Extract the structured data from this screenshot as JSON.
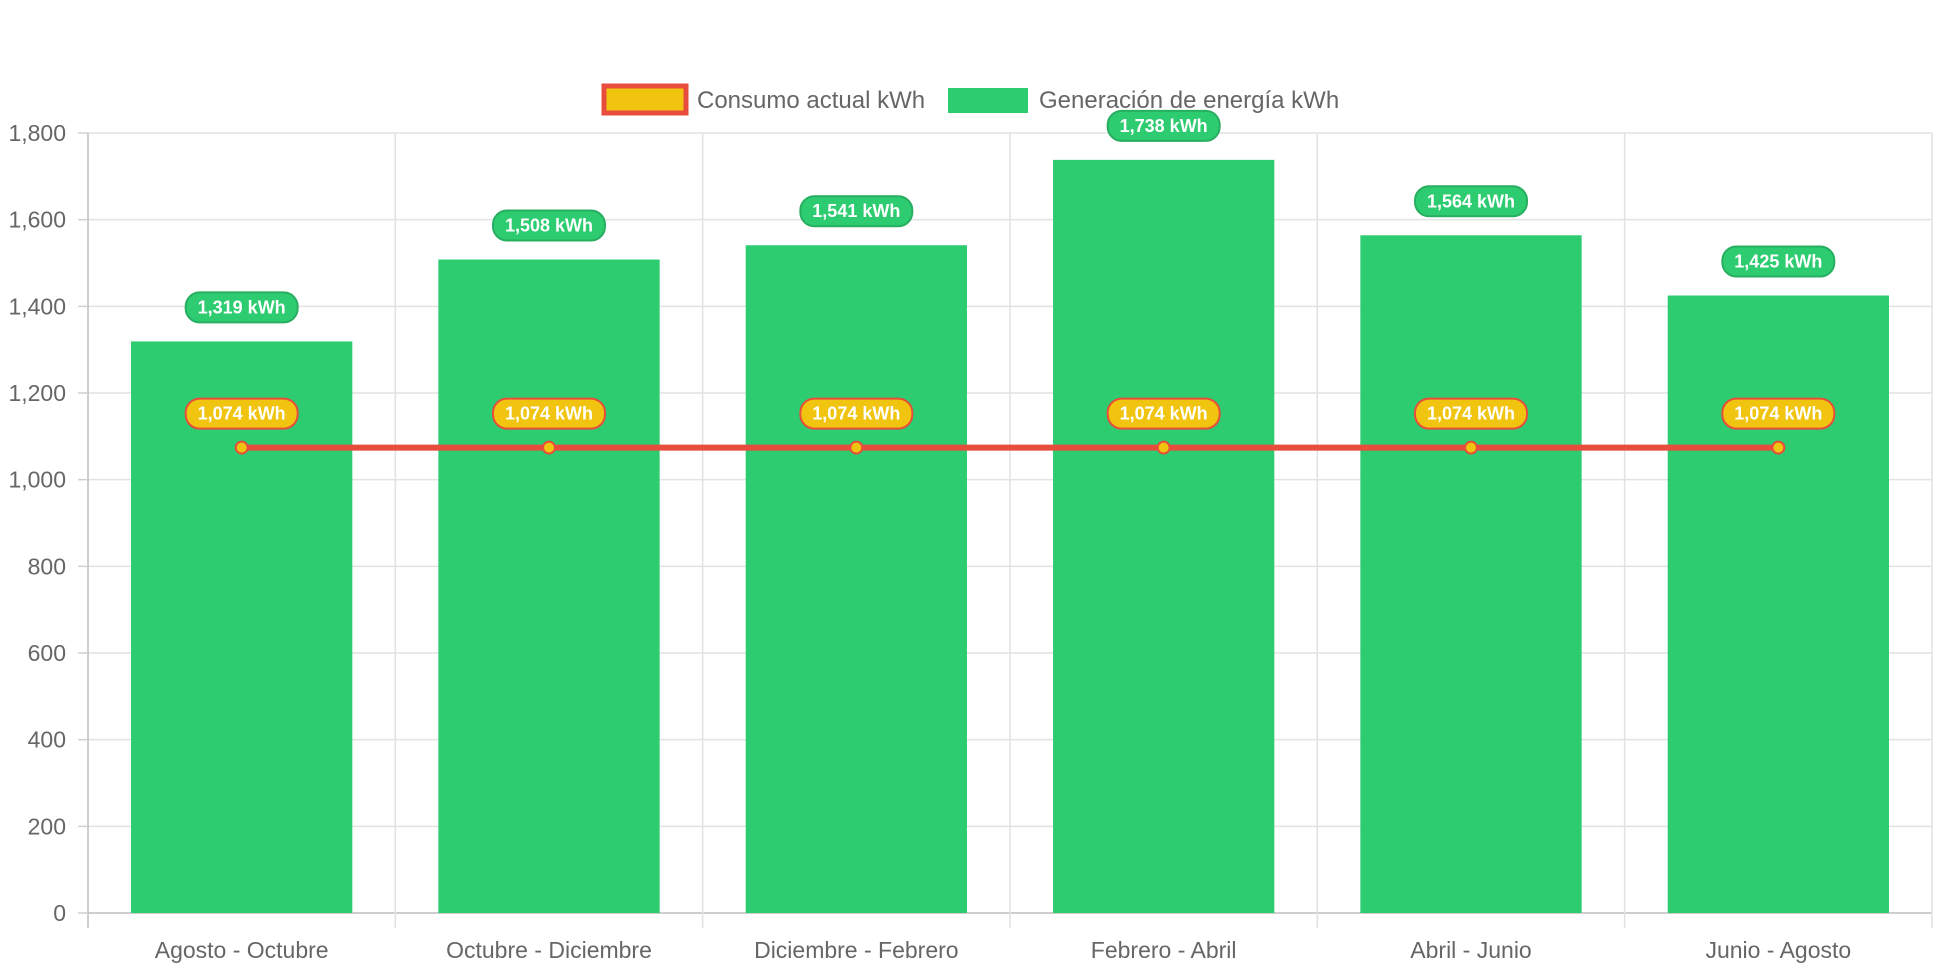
{
  "chart_data": {
    "type": "bar",
    "title": "",
    "xlabel": "",
    "ylabel": "",
    "categories": [
      "Agosto - Octubre",
      "Octubre - Diciembre",
      "Diciembre - Febrero",
      "Febrero - Abril",
      "Abril - Junio",
      "Junio - Agosto"
    ],
    "ylim": [
      0,
      1800
    ],
    "yticks": [
      "0",
      "200",
      "400",
      "600",
      "800",
      "1,000",
      "1,200",
      "1,400",
      "1,600",
      "1,800"
    ],
    "ytick_values": [
      0,
      200,
      400,
      600,
      800,
      1000,
      1200,
      1400,
      1600,
      1800
    ],
    "grid": true,
    "legend_position": "top-center",
    "series": [
      {
        "name": "Consumo actual kWh",
        "type": "line",
        "values": [
          1074,
          1074,
          1074,
          1074,
          1074,
          1074
        ],
        "labels": [
          "1,074 kWh",
          "1,074 kWh",
          "1,074 kWh",
          "1,074 kWh",
          "1,074 kWh",
          "1,074 kWh"
        ],
        "color": "#e74c3c",
        "fill_color": "#f1c40f"
      },
      {
        "name": "Generación de energía kWh",
        "type": "bar",
        "values": [
          1319,
          1508,
          1541,
          1738,
          1564,
          1425
        ],
        "labels": [
          "1,319 kWh",
          "1,508 kWh",
          "1,541 kWh",
          "1,738 kWh",
          "1,564 kWh",
          "1,425 kWh"
        ],
        "color": "#2ecc71",
        "border_color": "#27ae60"
      }
    ]
  }
}
